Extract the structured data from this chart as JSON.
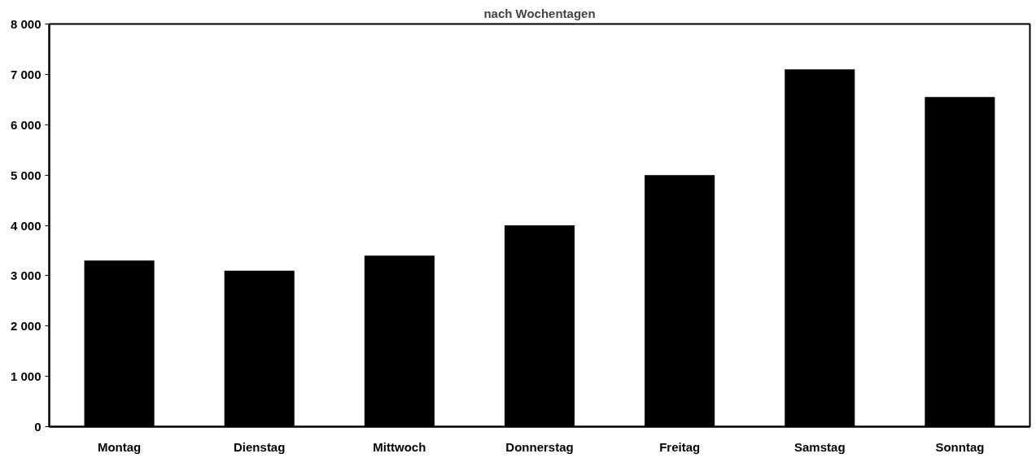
{
  "chart_data": {
    "type": "bar",
    "title": "nach Wochentagen",
    "categories": [
      "Montag",
      "Dienstag",
      "Mittwoch",
      "Donnerstag",
      "Freitag",
      "Samstag",
      "Sonntag"
    ],
    "values": [
      3300,
      3100,
      3400,
      4000,
      5000,
      7100,
      6550
    ],
    "color": "#000000",
    "ylim": [
      0,
      8000
    ],
    "yticks": [
      {
        "value": 0,
        "label": "0"
      },
      {
        "value": 1000,
        "label": "1 000"
      },
      {
        "value": 2000,
        "label": "2 000"
      },
      {
        "value": 3000,
        "label": "3 000"
      },
      {
        "value": 4000,
        "label": "4 000"
      },
      {
        "value": 5000,
        "label": "5 000"
      },
      {
        "value": 6000,
        "label": "6 000"
      },
      {
        "value": 7000,
        "label": "7 000"
      },
      {
        "value": 8000,
        "label": "8 000"
      }
    ],
    "grid": false
  }
}
